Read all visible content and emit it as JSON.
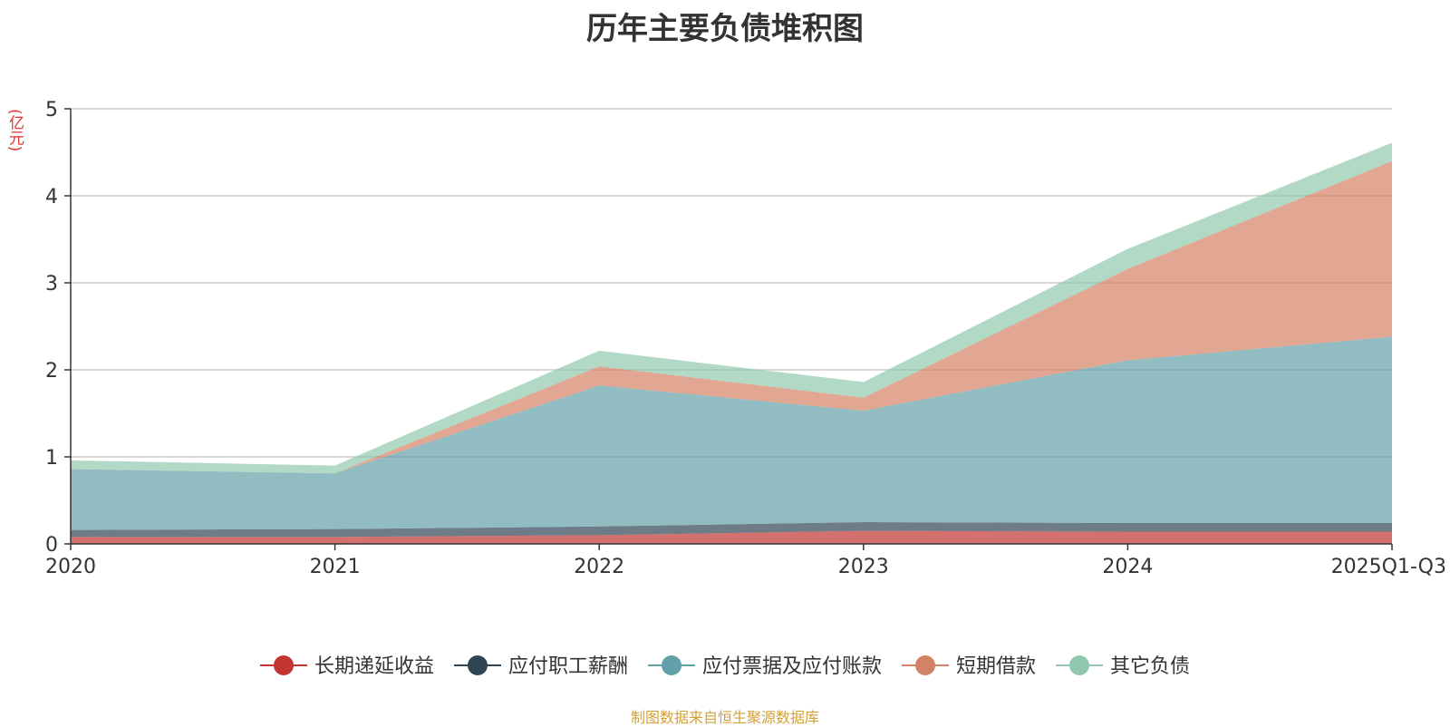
{
  "chart_data": {
    "type": "area",
    "stacked": true,
    "title": "历年主要负债堆积图",
    "ylabel": "(亿元)",
    "xlabel": "",
    "categories": [
      "2020",
      "2021",
      "2022",
      "2023",
      "2024",
      "2025Q1-Q3"
    ],
    "ylim": [
      0,
      5
    ],
    "yticks": [
      0,
      1,
      2,
      3,
      4,
      5
    ],
    "grid": true,
    "legend_position": "bottom",
    "series": [
      {
        "name": "长期递延收益",
        "color": "#c23531",
        "values": [
          0.08,
          0.08,
          0.1,
          0.15,
          0.14,
          0.14
        ]
      },
      {
        "name": "应付职工薪酬",
        "color": "#2f4554",
        "values": [
          0.08,
          0.09,
          0.1,
          0.1,
          0.1,
          0.1
        ]
      },
      {
        "name": "应付票据及应付账款",
        "color": "#61a0a8",
        "values": [
          0.7,
          0.64,
          1.62,
          1.28,
          1.87,
          2.14
        ]
      },
      {
        "name": "短期借款",
        "color": "#d48265",
        "values": [
          0.0,
          0.0,
          0.22,
          0.15,
          1.05,
          2.02
        ]
      },
      {
        "name": "其它负债",
        "color": "#91c7ae",
        "values": [
          0.1,
          0.09,
          0.18,
          0.18,
          0.23,
          0.21
        ]
      }
    ]
  },
  "source_note": "制图数据来自恒生聚源数据库"
}
